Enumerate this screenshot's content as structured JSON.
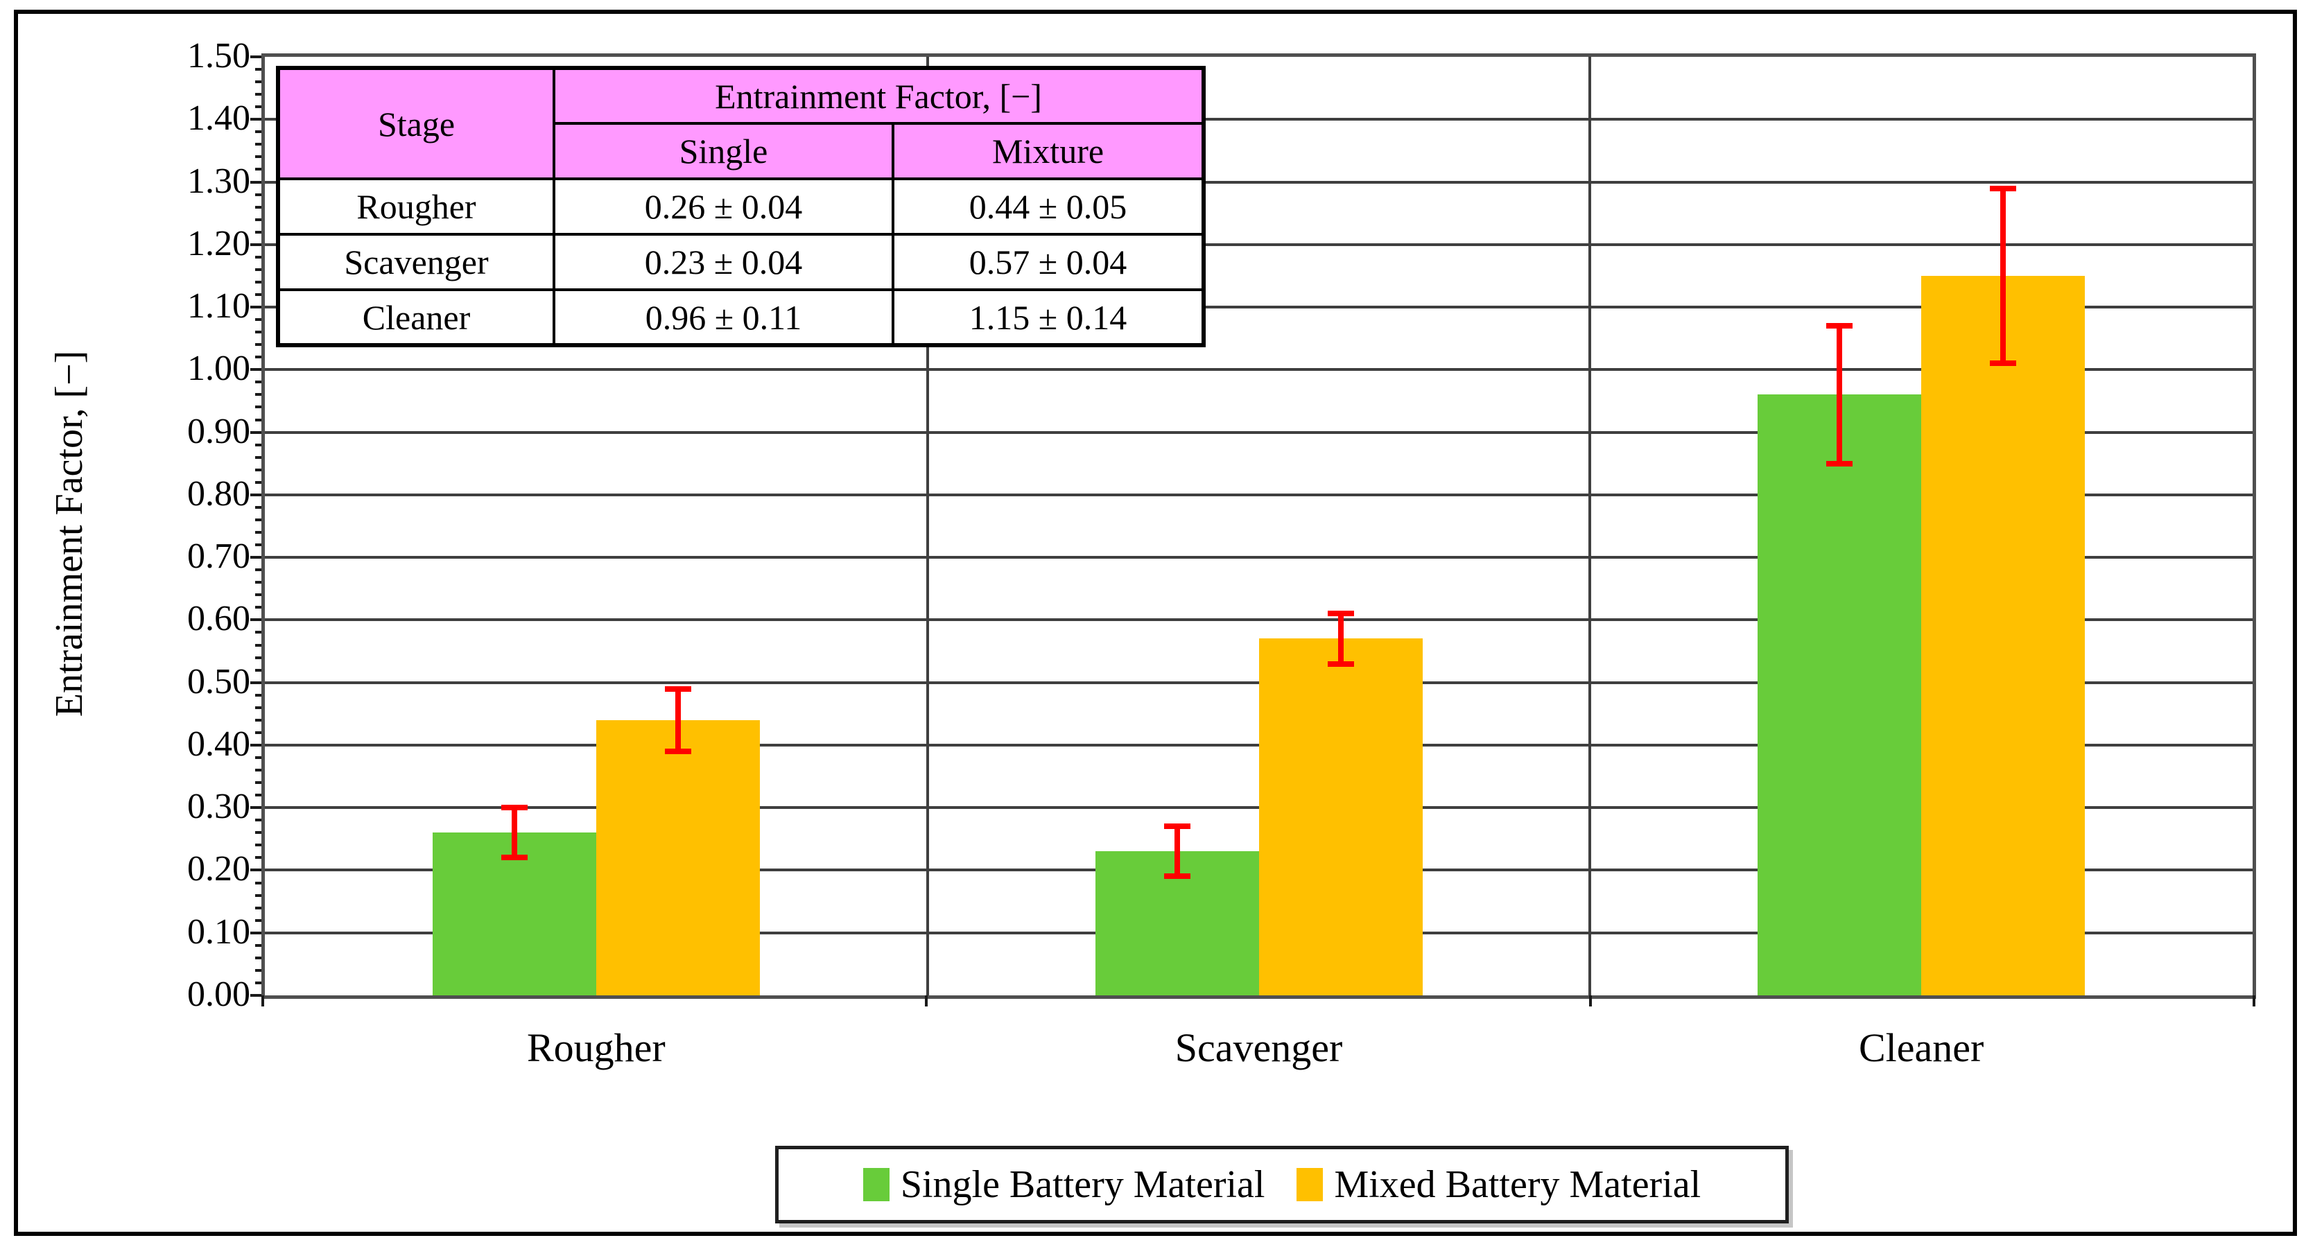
{
  "figure": {
    "background": "#ffffff",
    "frame_color": "#000000"
  },
  "chart_data": {
    "type": "bar",
    "title": "",
    "categories": [
      "Rougher",
      "Scavenger",
      "Cleaner"
    ],
    "series": [
      {
        "name": "Single Battery Material",
        "color": "#68cc3a",
        "values": [
          0.26,
          0.23,
          0.96
        ],
        "errors": [
          0.04,
          0.04,
          0.11
        ]
      },
      {
        "name": "Mixed Battery Material",
        "color": "#ffc000",
        "values": [
          0.44,
          0.57,
          1.15
        ],
        "errors": [
          0.05,
          0.04,
          0.14
        ]
      }
    ],
    "error_bar_color": "#ff0000",
    "xlabel": "",
    "ylabel": "Entrainment Factor, [−]",
    "ylim": [
      0.0,
      1.5
    ],
    "ytick_step": 0.1,
    "ytick_minor_step": 0.02,
    "yticks": [
      "0.00",
      "0.10",
      "0.20",
      "0.30",
      "0.40",
      "0.50",
      "0.60",
      "0.70",
      "0.80",
      "0.90",
      "1.00",
      "1.10",
      "1.20",
      "1.30",
      "1.40",
      "1.50"
    ],
    "grid": "horizontal major gridlines + vertical category separators, plot border on",
    "gridline_color": "#3f3f3f",
    "legend_position": "bottom-center"
  },
  "table": {
    "header_bg": "#ff99ff",
    "header": {
      "stage": "Stage",
      "group": "Entrainment Factor, [−]",
      "col_single": "Single",
      "col_mixture": "Mixture"
    },
    "rows": [
      {
        "stage": "Rougher",
        "single": "0.26 ± 0.04",
        "mixture": "0.44 ± 0.05"
      },
      {
        "stage": "Scavenger",
        "single": "0.23 ± 0.04",
        "mixture": "0.57 ± 0.04"
      },
      {
        "stage": "Cleaner",
        "single": "0.96 ± 0.11",
        "mixture": "1.15 ± 0.14"
      }
    ]
  },
  "legend": {
    "items": [
      {
        "label": "Single Battery Material",
        "color": "#68cc3a"
      },
      {
        "label": "Mixed Battery Material",
        "color": "#ffc000"
      }
    ]
  }
}
